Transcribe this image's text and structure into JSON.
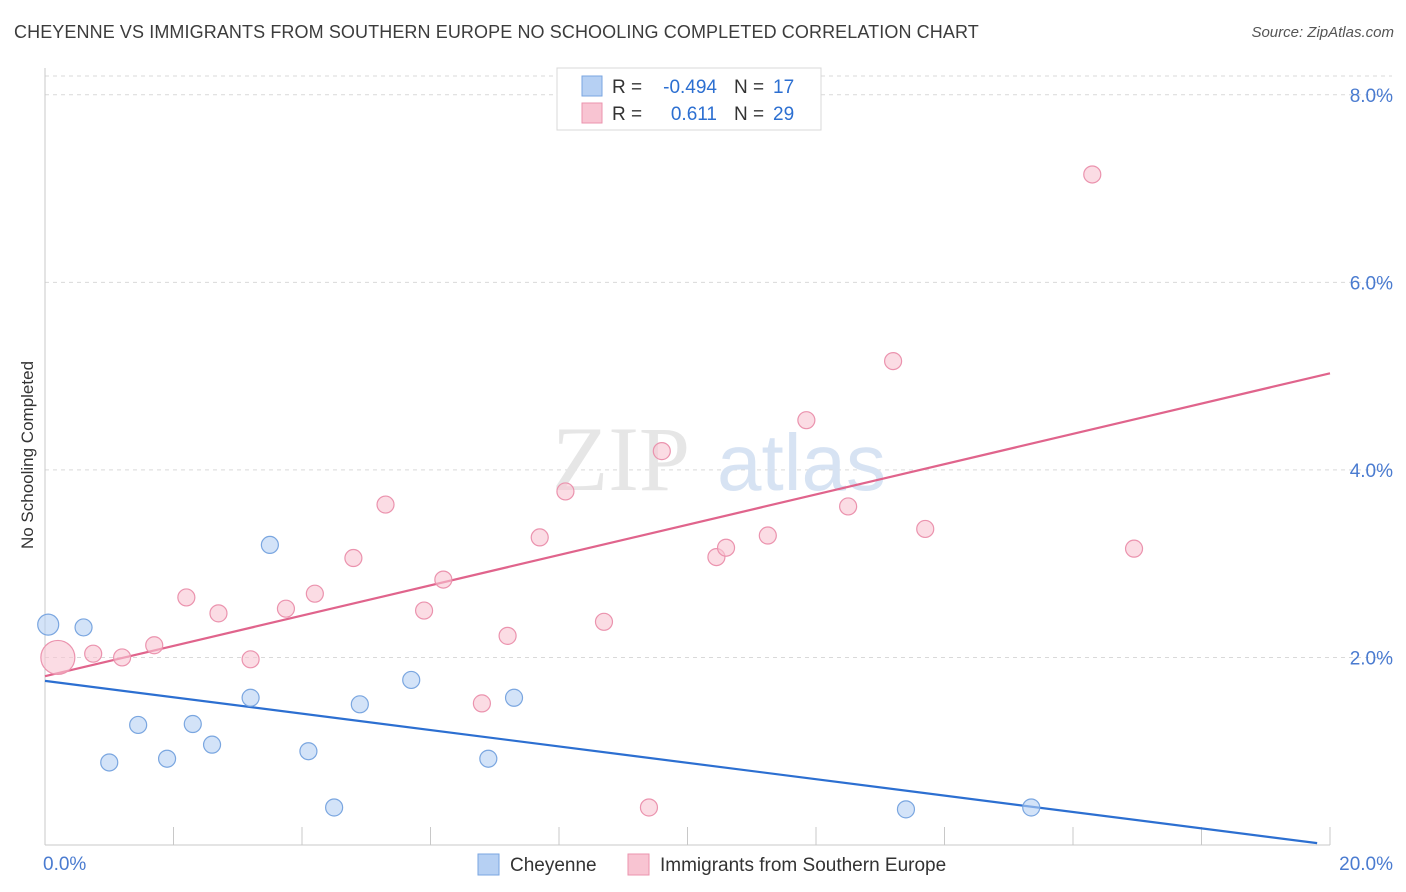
{
  "title": "CHEYENNE VS IMMIGRANTS FROM SOUTHERN EUROPE NO SCHOOLING COMPLETED CORRELATION CHART",
  "source": "Source: ZipAtlas.com",
  "watermark": {
    "zip": "ZIP",
    "atlas": "atlas"
  },
  "colors": {
    "blue_fill": "#b6d0f3",
    "blue_stroke": "#7aa6e0",
    "blue_line": "#2c6fd1",
    "pink_fill": "#f8c4d2",
    "pink_stroke": "#eb93ae",
    "pink_line": "#e0648c",
    "tick_text": "#4a7bd0",
    "grid": "#d9d9d9"
  },
  "stats": [
    {
      "r_label": "R =",
      "r_value": "-0.494",
      "n_label": "N =",
      "n_value": "17"
    },
    {
      "r_label": "R =",
      "r_value": "0.611",
      "n_label": "N =",
      "n_value": "29"
    }
  ],
  "chart_data": {
    "type": "scatter",
    "title": "CHEYENNE VS IMMIGRANTS FROM SOUTHERN EUROPE NO SCHOOLING COMPLETED CORRELATION CHART",
    "xlabel": "",
    "ylabel": "No Schooling Completed",
    "xlim": [
      0,
      20
    ],
    "ylim": [
      0,
      8.2
    ],
    "x_tick_labels": [
      {
        "value": 0,
        "label": "0.0%"
      },
      {
        "value": 20,
        "label": "20.0%"
      }
    ],
    "y_tick_labels": [
      {
        "value": 2,
        "label": "2.0%"
      },
      {
        "value": 4,
        "label": "4.0%"
      },
      {
        "value": 6,
        "label": "6.0%"
      },
      {
        "value": 8,
        "label": "8.0%"
      }
    ],
    "y_gridlines": [
      2,
      4,
      6,
      8
    ],
    "legend_position": "bottom-center",
    "series": [
      {
        "name": "Cheyenne",
        "color": "blue",
        "trend": {
          "x": [
            0,
            19.8
          ],
          "y": [
            1.75,
            0.02
          ]
        },
        "points": [
          {
            "x": 0.05,
            "y": 2.35,
            "size": "large"
          },
          {
            "x": 0.6,
            "y": 2.32
          },
          {
            "x": 1.0,
            "y": 0.88
          },
          {
            "x": 1.45,
            "y": 1.28
          },
          {
            "x": 1.9,
            "y": 0.92
          },
          {
            "x": 2.3,
            "y": 1.29
          },
          {
            "x": 2.6,
            "y": 1.07
          },
          {
            "x": 3.2,
            "y": 1.57
          },
          {
            "x": 3.5,
            "y": 3.2
          },
          {
            "x": 4.1,
            "y": 1.0
          },
          {
            "x": 4.5,
            "y": 0.4
          },
          {
            "x": 4.9,
            "y": 1.5
          },
          {
            "x": 5.7,
            "y": 1.76
          },
          {
            "x": 6.9,
            "y": 0.92
          },
          {
            "x": 7.3,
            "y": 1.57
          },
          {
            "x": 13.4,
            "y": 0.38
          },
          {
            "x": 15.35,
            "y": 0.4
          }
        ]
      },
      {
        "name": "Immigrants from Southern Europe",
        "color": "pink",
        "trend": {
          "x": [
            0,
            20
          ],
          "y": [
            1.8,
            5.03
          ]
        },
        "points": [
          {
            "x": 0.2,
            "y": 2.0,
            "size": "xlarge"
          },
          {
            "x": 0.75,
            "y": 2.04
          },
          {
            "x": 1.2,
            "y": 2.0
          },
          {
            "x": 1.7,
            "y": 2.13
          },
          {
            "x": 2.2,
            "y": 2.64
          },
          {
            "x": 2.7,
            "y": 2.47
          },
          {
            "x": 3.2,
            "y": 1.98
          },
          {
            "x": 3.75,
            "y": 2.52
          },
          {
            "x": 4.2,
            "y": 2.68
          },
          {
            "x": 4.8,
            "y": 3.06
          },
          {
            "x": 5.3,
            "y": 3.63
          },
          {
            "x": 5.9,
            "y": 2.5
          },
          {
            "x": 6.2,
            "y": 2.83
          },
          {
            "x": 6.8,
            "y": 1.51
          },
          {
            "x": 7.2,
            "y": 2.23
          },
          {
            "x": 7.7,
            "y": 3.28
          },
          {
            "x": 8.1,
            "y": 3.77
          },
          {
            "x": 8.7,
            "y": 2.38
          },
          {
            "x": 9.4,
            "y": 0.4
          },
          {
            "x": 9.6,
            "y": 4.2
          },
          {
            "x": 10.45,
            "y": 3.07
          },
          {
            "x": 10.6,
            "y": 3.17
          },
          {
            "x": 11.25,
            "y": 3.3
          },
          {
            "x": 11.85,
            "y": 4.53
          },
          {
            "x": 12.5,
            "y": 3.61
          },
          {
            "x": 13.2,
            "y": 5.16
          },
          {
            "x": 13.7,
            "y": 3.37
          },
          {
            "x": 16.3,
            "y": 7.15
          },
          {
            "x": 16.95,
            "y": 3.16
          }
        ]
      }
    ]
  }
}
